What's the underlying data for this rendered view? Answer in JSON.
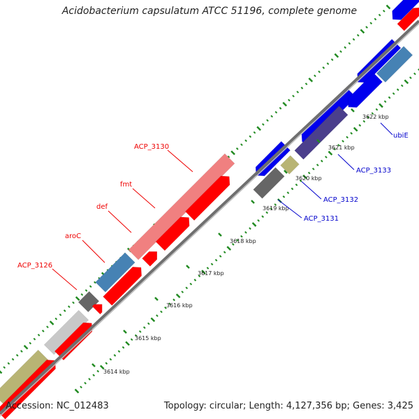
{
  "title": "Acidobacterium capsulatum ATCC 51196, complete genome",
  "accession": "Accession: NC_012483",
  "summary": "Topology: circular; Length: 4,127,356 bp; Genes: 3,425",
  "colors": {
    "forward_cds": "#ff0000",
    "forward_feature_light": "#f08080",
    "reverse_cds": "#0000ee",
    "reverse_feature_light": "#4682b4",
    "backbone": "#888888",
    "tick": "#228b22",
    "label_red": "#ee0000",
    "label_blue": "#0000cc"
  },
  "scale_labels": [
    "3614 kbp",
    "3615 kbp",
    "3616 kbp",
    "3617 kbp",
    "3618 kbp",
    "3619 kbp",
    "3620 kbp",
    "3621 kbp",
    "3622 kbp"
  ],
  "gene_labels": [
    {
      "name": "ACP_3126",
      "strand": "forward"
    },
    {
      "name": "aroC",
      "strand": "forward"
    },
    {
      "name": "def",
      "strand": "forward"
    },
    {
      "name": "fmt",
      "strand": "forward"
    },
    {
      "name": "ACP_3130",
      "strand": "forward"
    },
    {
      "name": "ACP_3131",
      "strand": "reverse"
    },
    {
      "name": "ACP_3132",
      "strand": "reverse"
    },
    {
      "name": "ACP_3133",
      "strand": "reverse"
    },
    {
      "name": "ubiE",
      "strand": "reverse"
    }
  ]
}
